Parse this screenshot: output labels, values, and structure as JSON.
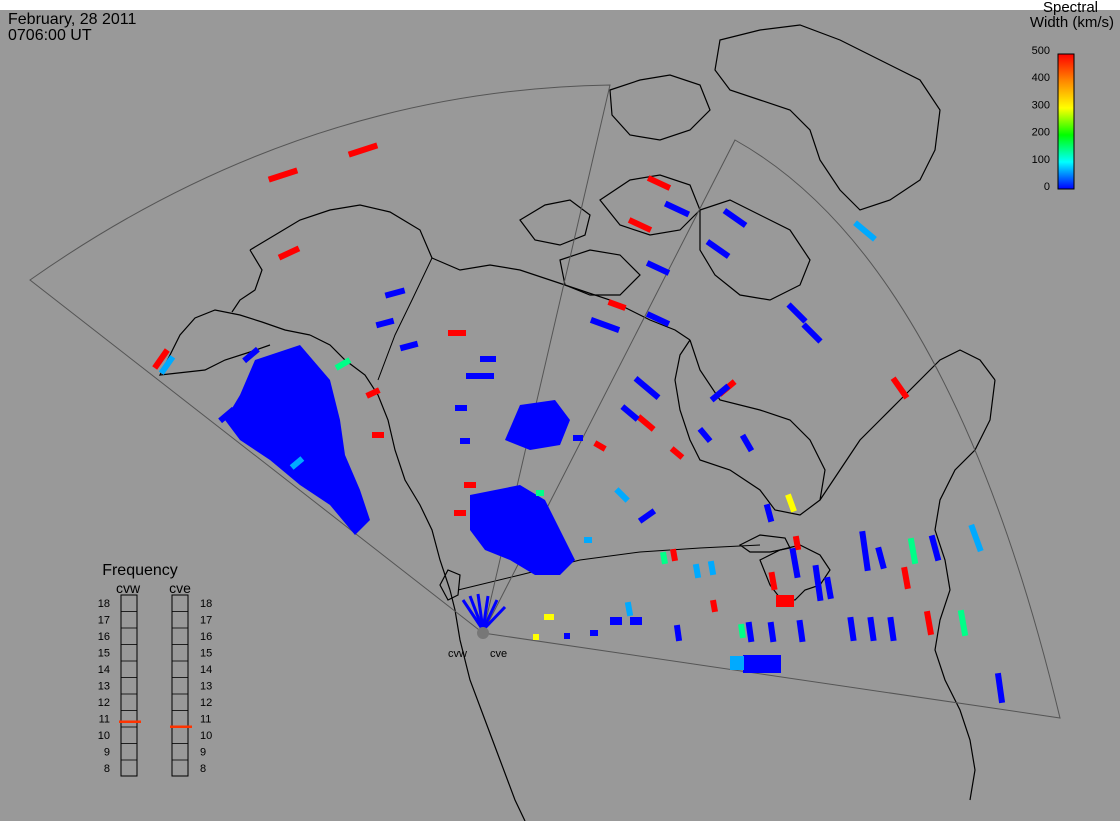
{
  "header": {
    "date": "February, 28 2011",
    "time": "0706:00 UT"
  },
  "colorbar": {
    "title_line1": "Spectral",
    "title_line2": "Width (km/s)",
    "ticks": [
      "500",
      "400",
      "300",
      "200",
      "100",
      "0"
    ],
    "stops": [
      "#ff0000",
      "#ffaa00",
      "#ffff00",
      "#00ff00",
      "#00ffff",
      "#0000ff"
    ]
  },
  "frequency": {
    "title": "Frequency",
    "left_label": "cvw",
    "right_label": "cve",
    "scale": [
      "18",
      "17",
      "16",
      "15",
      "14",
      "13",
      "12",
      "11",
      "10",
      "9",
      "8"
    ],
    "cvw_value": 10.8,
    "cve_value": 10.5
  },
  "sites": {
    "west": "cvw",
    "east": "cve"
  },
  "colors": {
    "background": "#999999",
    "outline": "#000000",
    "fov": "#555555",
    "scatter_low": "#0000ff",
    "scatter_high": "#ff0000",
    "marker": "#ff3300"
  }
}
